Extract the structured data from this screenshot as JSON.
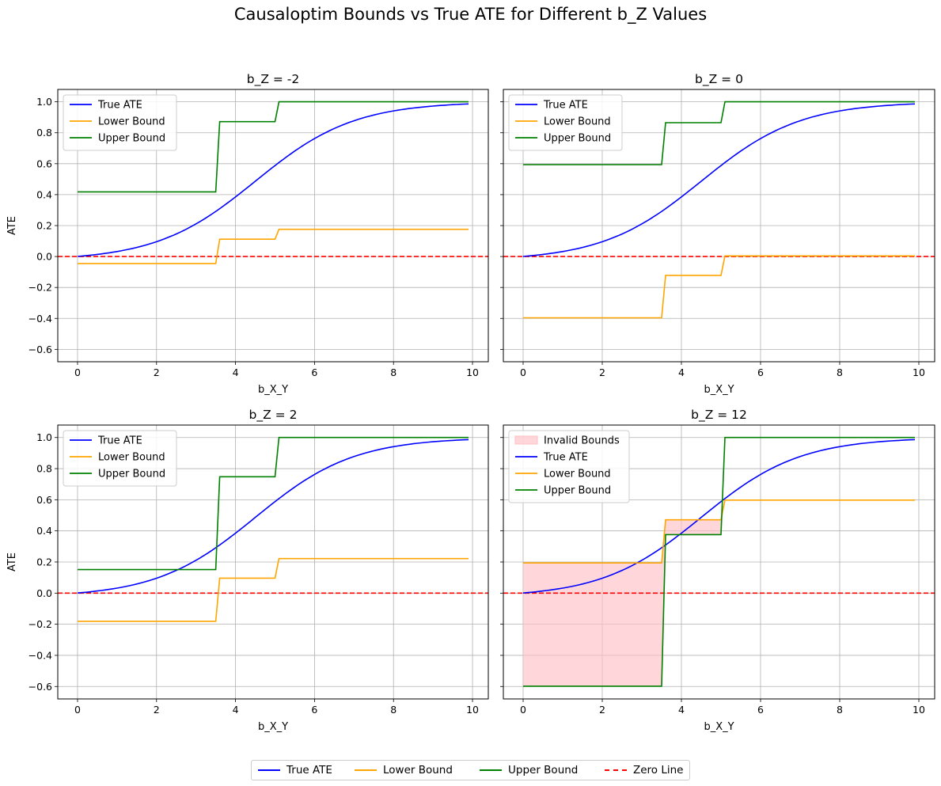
{
  "figure": {
    "title": "Causaloptim Bounds vs True ATE for Different b_Z Values",
    "colors": {
      "true_ate": "#0000ff",
      "lower_bound": "#ffa500",
      "upper_bound": "#008000",
      "zero_line": "#ff0000",
      "invalid_fill": "#ffc0c5",
      "grid": "#b0b0b0"
    },
    "bottom_legend": [
      "True ATE",
      "Lower Bound",
      "Upper Bound",
      "Zero Line"
    ]
  },
  "chart_data": [
    {
      "type": "line",
      "title": "b_Z = -2",
      "xlabel": "b_X_Y",
      "ylabel": "ATE",
      "xlim": [
        -0.5,
        10.4
      ],
      "ylim": [
        -0.68,
        1.08
      ],
      "xticks": [
        0,
        2,
        4,
        6,
        8,
        10
      ],
      "yticks": [
        -0.6,
        -0.4,
        -0.2,
        0.0,
        0.2,
        0.4,
        0.6,
        0.8,
        1.0
      ],
      "grid": true,
      "legend": [
        "True ATE",
        "Lower Bound",
        "Upper Bound"
      ],
      "legend_position": "top-left",
      "zero_line": 0,
      "true_ate": {
        "type": "logistic",
        "midpoint": 4.5,
        "slope": 0.8,
        "x_range": [
          0,
          9.9
        ]
      },
      "series": [
        {
          "name": "Lower Bound",
          "x": [
            0,
            3.5,
            3.6,
            5.0,
            5.1,
            9.9
          ],
          "y": [
            -0.045,
            -0.045,
            0.112,
            0.112,
            0.176,
            0.176
          ]
        },
        {
          "name": "Upper Bound",
          "x": [
            0,
            3.5,
            3.6,
            5.0,
            5.1,
            9.9
          ],
          "y": [
            0.418,
            0.418,
            0.872,
            0.872,
            1.0,
            1.0
          ]
        }
      ],
      "invalid_regions": []
    },
    {
      "type": "line",
      "title": "b_Z = 0",
      "xlabel": "b_X_Y",
      "ylabel": "",
      "xlim": [
        -0.5,
        10.4
      ],
      "ylim": [
        -0.68,
        1.08
      ],
      "xticks": [
        0,
        2,
        4,
        6,
        8,
        10
      ],
      "yticks": [
        -0.6,
        -0.4,
        -0.2,
        0.0,
        0.2,
        0.4,
        0.6,
        0.8,
        1.0
      ],
      "grid": true,
      "legend": [
        "True ATE",
        "Lower Bound",
        "Upper Bound"
      ],
      "legend_position": "top-left",
      "zero_line": 0,
      "true_ate": {
        "type": "logistic",
        "midpoint": 4.5,
        "slope": 0.8,
        "x_range": [
          0,
          9.9
        ]
      },
      "series": [
        {
          "name": "Lower Bound",
          "x": [
            0,
            3.5,
            3.6,
            5.0,
            5.1,
            9.9
          ],
          "y": [
            -0.396,
            -0.396,
            -0.122,
            -0.122,
            0.004,
            0.004
          ]
        },
        {
          "name": "Upper Bound",
          "x": [
            0,
            3.5,
            3.6,
            5.0,
            5.1,
            9.9
          ],
          "y": [
            0.594,
            0.594,
            0.865,
            0.865,
            1.0,
            1.0
          ]
        }
      ],
      "invalid_regions": []
    },
    {
      "type": "line",
      "title": "b_Z = 2",
      "xlabel": "b_X_Y",
      "ylabel": "ATE",
      "xlim": [
        -0.5,
        10.4
      ],
      "ylim": [
        -0.68,
        1.08
      ],
      "xticks": [
        0,
        2,
        4,
        6,
        8,
        10
      ],
      "yticks": [
        -0.6,
        -0.4,
        -0.2,
        0.0,
        0.2,
        0.4,
        0.6,
        0.8,
        1.0
      ],
      "grid": true,
      "legend": [
        "True ATE",
        "Lower Bound",
        "Upper Bound"
      ],
      "legend_position": "top-left",
      "zero_line": 0,
      "true_ate": {
        "type": "logistic",
        "midpoint": 4.5,
        "slope": 0.8,
        "x_range": [
          0,
          9.9
        ]
      },
      "series": [
        {
          "name": "Lower Bound",
          "x": [
            0,
            3.5,
            3.6,
            5.0,
            5.1,
            9.9
          ],
          "y": [
            -0.181,
            -0.181,
            0.096,
            0.096,
            0.222,
            0.222
          ]
        },
        {
          "name": "Upper Bound",
          "x": [
            0,
            3.5,
            3.6,
            5.0,
            5.1,
            9.9
          ],
          "y": [
            0.151,
            0.151,
            0.748,
            0.748,
            1.0,
            1.0
          ]
        }
      ],
      "invalid_regions": []
    },
    {
      "type": "line",
      "title": "b_Z = 12",
      "xlabel": "b_X_Y",
      "ylabel": "",
      "xlim": [
        -0.5,
        10.4
      ],
      "ylim": [
        -0.68,
        1.08
      ],
      "xticks": [
        0,
        2,
        4,
        6,
        8,
        10
      ],
      "yticks": [
        -0.6,
        -0.4,
        -0.2,
        0.0,
        0.2,
        0.4,
        0.6,
        0.8,
        1.0
      ],
      "grid": true,
      "legend": [
        "Invalid Bounds",
        "True ATE",
        "Lower Bound",
        "Upper Bound"
      ],
      "legend_position": "top-left",
      "zero_line": 0,
      "true_ate": {
        "type": "logistic",
        "midpoint": 4.5,
        "slope": 0.8,
        "x_range": [
          0,
          9.9
        ]
      },
      "series": [
        {
          "name": "Lower Bound",
          "x": [
            0,
            3.5,
            3.6,
            5.0,
            5.1,
            9.9
          ],
          "y": [
            0.194,
            0.194,
            0.471,
            0.471,
            0.598,
            0.598
          ]
        },
        {
          "name": "Upper Bound",
          "x": [
            0,
            3.5,
            3.6,
            5.0,
            5.1,
            9.9
          ],
          "y": [
            -0.598,
            -0.598,
            0.376,
            0.376,
            1.0,
            1.0
          ]
        }
      ],
      "invalid_regions": [
        {
          "x_from": 0,
          "x_to": 5.05
        }
      ]
    }
  ]
}
